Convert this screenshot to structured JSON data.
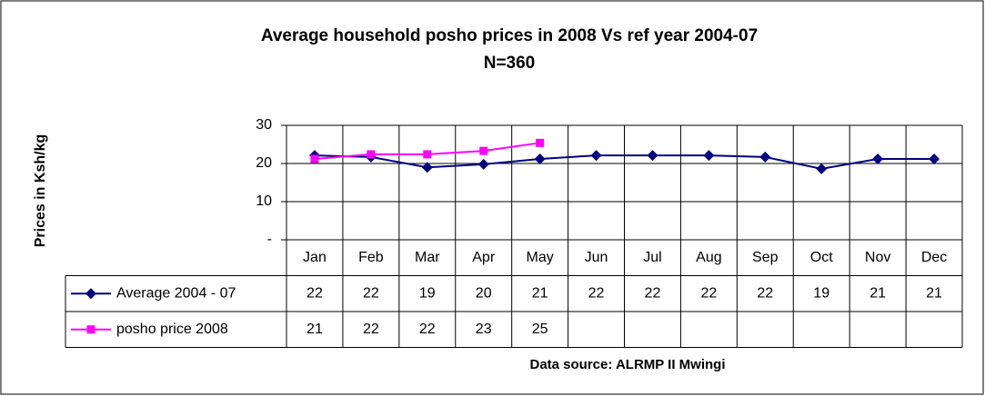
{
  "chart_data": {
    "type": "line",
    "title": "Average household posho prices in 2008 Vs ref year 2004-07",
    "subtitle": "N=360",
    "y_label": "Prices in Ksh/kg",
    "source": "Data source: ALRMP II Mwingi",
    "categories": [
      "Jan",
      "Feb",
      "Mar",
      "Apr",
      "May",
      "Jun",
      "Jul",
      "Aug",
      "Sep",
      "Oct",
      "Nov",
      "Dec"
    ],
    "series": [
      {
        "name": "Average 2004 - 07",
        "color": "#000080",
        "marker": "diamond",
        "values": [
          22.1,
          21.7,
          19.0,
          19.8,
          21.2,
          22.1,
          22.1,
          22.1,
          21.7,
          18.6,
          21.2,
          21.2
        ],
        "value_labels": [
          "22",
          "22",
          "19",
          "20",
          "21",
          "22",
          "22",
          "22",
          "22",
          "19",
          "21",
          "21"
        ]
      },
      {
        "name": "posho price 2008",
        "color": "#ff00ff",
        "marker": "square",
        "values": [
          21.2,
          22.4,
          22.4,
          23.3,
          25.4,
          null,
          null,
          null,
          null,
          null,
          null,
          null
        ],
        "value_labels": [
          "21",
          "22",
          "22",
          "23",
          "25",
          null,
          null,
          null,
          null,
          null,
          null,
          null
        ]
      }
    ],
    "ylim": [
      0,
      30
    ],
    "yticks": [
      {
        "value": 0,
        "label": "-"
      },
      10,
      20,
      30
    ],
    "grid": true
  }
}
